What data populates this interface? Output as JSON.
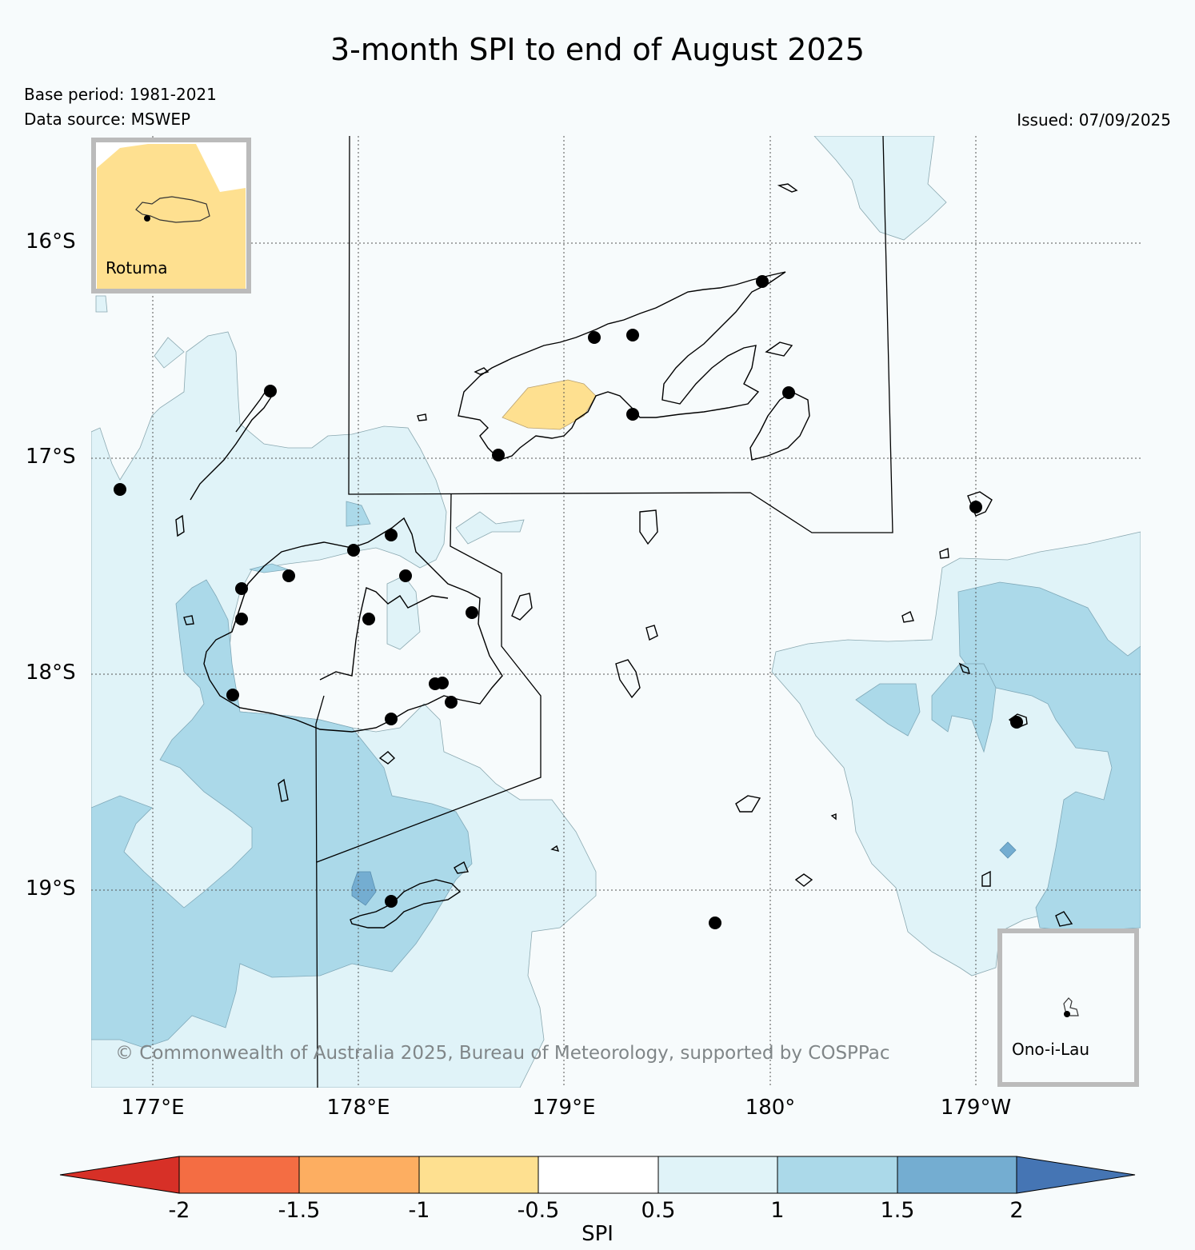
{
  "title": "3-month SPI to end of August 2025",
  "base_period": "Base period: 1981-2021",
  "data_source": "Data source: MSWEP",
  "issued": "Issued: 07/09/2025",
  "lat_ticks": [
    "16°S",
    "17°S",
    "18°S",
    "19°S"
  ],
  "lon_ticks": [
    "177°E",
    "178°E",
    "179°E",
    "180°",
    "179°W"
  ],
  "insets": {
    "rotuma": "Rotuma",
    "ono_i_lau": "Ono-i-Lau"
  },
  "copyright": "© Commonwealth of Australia 2025, Bureau of Meteorology, supported by COSPPac",
  "colorbar": {
    "title": "SPI",
    "labels": [
      "-2",
      "-1.5",
      "-1",
      "-0.5",
      "0.5",
      "1",
      "1.5",
      "2"
    ],
    "colors": [
      "#d73027",
      "#f46d43",
      "#fdae61",
      "#fee090",
      "#ffffff",
      "#e0f3f8",
      "#abd9e9",
      "#74add1",
      "#4575b4"
    ]
  },
  "stations": 27,
  "colors": {
    "background": "#f7fbfc",
    "spi_0_5_to_1": "#e0f3f8",
    "spi_1_to_1_5": "#abd9e9",
    "spi_1_5_to_2": "#74add1",
    "spi_minus1_to_minus0_5": "#fee090"
  }
}
